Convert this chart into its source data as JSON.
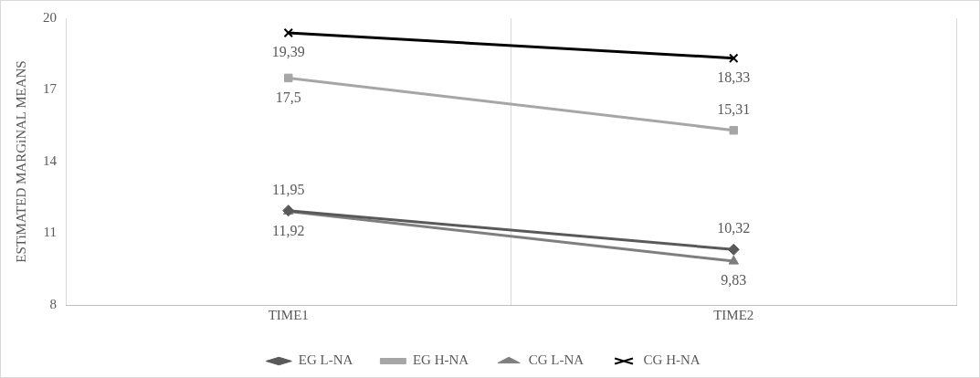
{
  "chart_data": {
    "type": "line",
    "ylabel": "ESTiMATED MARGiNAL MEANS",
    "categories": [
      "TIME1",
      "TIME2"
    ],
    "series": [
      {
        "name": "EG L-NA",
        "color": "#595959",
        "marker": "diamond",
        "values": [
          11.95,
          10.32
        ],
        "value_labels": [
          "11,95",
          "10,32"
        ]
      },
      {
        "name": "EG H-NA",
        "color": "#a6a6a6",
        "marker": "square",
        "values": [
          17.5,
          15.31
        ],
        "value_labels": [
          "17,5",
          "15,31"
        ]
      },
      {
        "name": "CG L-NA",
        "color": "#7f7f7f",
        "marker": "triangle",
        "values": [
          11.92,
          9.83
        ],
        "value_labels": [
          "11,92",
          "9,83"
        ]
      },
      {
        "name": "CG H-NA",
        "color": "#000000",
        "marker": "cross",
        "values": [
          19.39,
          18.33
        ],
        "value_labels": [
          "19,39",
          "18,33"
        ]
      }
    ],
    "ylim": [
      8,
      20
    ],
    "yticks": [
      8,
      11,
      14,
      17,
      20
    ],
    "grid": "x",
    "legend": "bottom"
  }
}
